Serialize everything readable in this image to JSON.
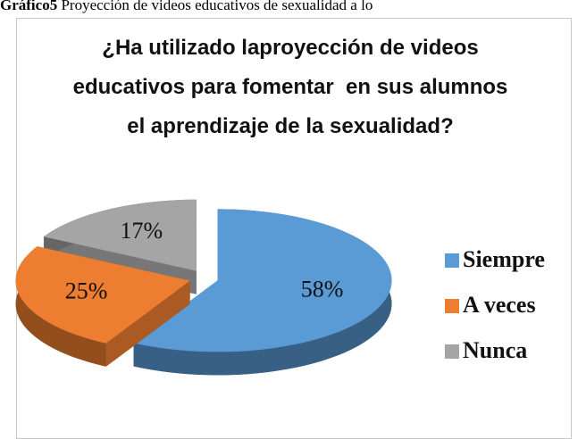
{
  "chart_data": {
    "type": "pie",
    "caption_label": "Gráfico5",
    "caption": "Proyección de videos educativos de sexualidad a lo",
    "title": "¿Ha utilizado laproyección de videos educativos para fomentar  en sus alumnos el aprendizaje de la sexualidad?",
    "categories": [
      "Siempre",
      "A veces",
      "Nunca"
    ],
    "values": [
      58,
      25,
      17
    ],
    "value_labels": [
      "58%",
      "25%",
      "17%"
    ],
    "colors": [
      "#5b9bd5",
      "#ed7d31",
      "#a5a5a5"
    ],
    "legend": "right"
  }
}
